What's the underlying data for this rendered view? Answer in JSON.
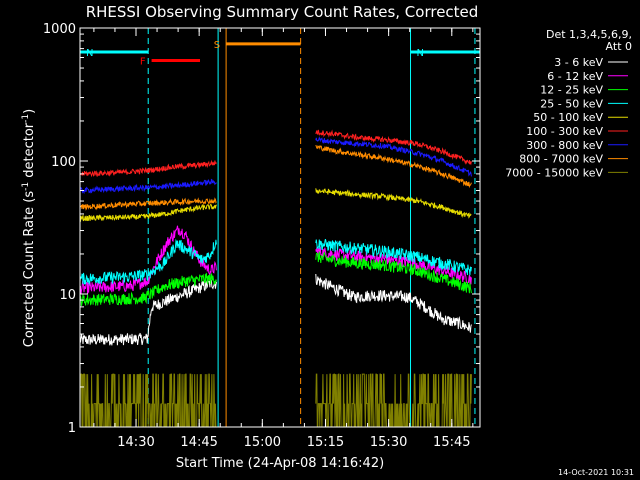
{
  "chart_data": {
    "type": "line",
    "title": "RHESSI Observing Summary Count Rates, Corrected",
    "xlabel": "Start Time (24-Apr-08 14:16:42)",
    "ylabel": "Corrected Count Rate (s^-1 detector^-1)",
    "ylabel_parts": [
      "Corrected Count Rate (s",
      "-1",
      " detector",
      "-1",
      ")"
    ],
    "yscale": "log",
    "ylim": [
      1,
      1000
    ],
    "xlim_minutes": [
      0,
      95
    ],
    "y_ticks": [
      {
        "value": 1,
        "label": "1"
      },
      {
        "value": 10,
        "label": "10"
      },
      {
        "value": 100,
        "label": "100"
      },
      {
        "value": 1000,
        "label": "1000"
      }
    ],
    "x_ticks": [
      {
        "minute": 13.3,
        "label": "14:30"
      },
      {
        "minute": 28.3,
        "label": "14:45"
      },
      {
        "minute": 43.3,
        "label": "15:00"
      },
      {
        "minute": 58.3,
        "label": "15:15"
      },
      {
        "minute": 73.3,
        "label": "15:30"
      },
      {
        "minute": 88.3,
        "label": "15:45"
      }
    ],
    "legend": {
      "header": [
        "Det 1,3,4,5,6,9,",
        "Att 0"
      ],
      "position": "right"
    },
    "series": [
      {
        "name": "3 - 6 keV",
        "color": "#ffffff",
        "points": [
          [
            0,
            4.5
          ],
          [
            16,
            4.6
          ],
          [
            17,
            8
          ],
          [
            28,
            11
          ],
          [
            31,
            12
          ],
          [
            32.5,
            12
          ]
        ],
        "points2": [
          [
            56,
            13
          ],
          [
            58,
            12
          ],
          [
            62,
            10.5
          ],
          [
            65,
            9.5
          ],
          [
            70,
            9.8
          ],
          [
            78,
            9.5
          ],
          [
            82,
            8
          ],
          [
            86,
            6.5
          ],
          [
            90,
            6
          ],
          [
            93,
            5.5
          ]
        ]
      },
      {
        "name": "6 - 12 keV",
        "color": "#ff00ff",
        "points": [
          [
            0,
            11
          ],
          [
            12,
            11.5
          ],
          [
            16,
            12.5
          ],
          [
            18,
            17
          ],
          [
            21,
            25
          ],
          [
            23.5,
            31
          ],
          [
            25,
            28
          ],
          [
            27,
            21
          ],
          [
            29,
            17
          ],
          [
            31,
            15
          ],
          [
            32.5,
            16
          ]
        ],
        "points2": [
          [
            56,
            21
          ],
          [
            60,
            20
          ],
          [
            66,
            19
          ],
          [
            72,
            18.5
          ],
          [
            80,
            17
          ],
          [
            86,
            15
          ],
          [
            93,
            13
          ]
        ]
      },
      {
        "name": "12 - 25 keV",
        "color": "#00ff00",
        "points": [
          [
            0,
            9
          ],
          [
            15,
            9.3
          ],
          [
            17,
            10
          ],
          [
            20,
            11.5
          ],
          [
            25,
            12.5
          ],
          [
            30,
            13
          ],
          [
            32.5,
            13
          ]
        ],
        "points2": [
          [
            56,
            19
          ],
          [
            60,
            18
          ],
          [
            66,
            17
          ],
          [
            72,
            16.5
          ],
          [
            80,
            15
          ],
          [
            86,
            13
          ],
          [
            93,
            11
          ]
        ]
      },
      {
        "name": "25 - 50 keV",
        "color": "#00ffff",
        "points": [
          [
            0,
            13
          ],
          [
            12,
            13.5
          ],
          [
            16,
            14
          ],
          [
            20,
            17
          ],
          [
            23,
            24
          ],
          [
            26,
            21
          ],
          [
            29,
            18
          ],
          [
            31,
            20
          ],
          [
            32.5,
            26
          ]
        ],
        "points2": [
          [
            56,
            24
          ],
          [
            60,
            23
          ],
          [
            66,
            22
          ],
          [
            72,
            21
          ],
          [
            80,
            19
          ],
          [
            86,
            17
          ],
          [
            93,
            15
          ]
        ]
      },
      {
        "name": "50 - 100 keV",
        "color": "#e6dc00",
        "points": [
          [
            0,
            37
          ],
          [
            15,
            38
          ],
          [
            20,
            40
          ],
          [
            25,
            43
          ],
          [
            30,
            45
          ],
          [
            32.5,
            45
          ]
        ],
        "points2": [
          [
            56,
            60
          ],
          [
            60,
            58
          ],
          [
            66,
            56
          ],
          [
            72,
            54
          ],
          [
            80,
            50
          ],
          [
            86,
            45
          ],
          [
            93,
            38
          ]
        ]
      },
      {
        "name": "100 - 300 keV",
        "color": "#ff2020",
        "points": [
          [
            0,
            80
          ],
          [
            10,
            82
          ],
          [
            16,
            85
          ],
          [
            22,
            90
          ],
          [
            28,
            93
          ],
          [
            32.5,
            97
          ]
        ],
        "points2": [
          [
            56,
            165
          ],
          [
            60,
            160
          ],
          [
            66,
            150
          ],
          [
            72,
            145
          ],
          [
            80,
            135
          ],
          [
            86,
            118
          ],
          [
            93,
            97
          ]
        ]
      },
      {
        "name": "300 - 800 keV",
        "color": "#1a1aff",
        "points": [
          [
            0,
            60
          ],
          [
            10,
            62
          ],
          [
            16,
            63
          ],
          [
            22,
            65
          ],
          [
            28,
            68
          ],
          [
            32.5,
            70
          ]
        ],
        "points2": [
          [
            56,
            145
          ],
          [
            60,
            140
          ],
          [
            66,
            135
          ],
          [
            72,
            130
          ],
          [
            80,
            115
          ],
          [
            86,
            100
          ],
          [
            93,
            80
          ]
        ]
      },
      {
        "name": "800 - 7000 keV",
        "color": "#ff8c00",
        "points": [
          [
            0,
            45
          ],
          [
            10,
            47
          ],
          [
            16,
            48
          ],
          [
            22,
            49
          ],
          [
            28,
            50
          ],
          [
            32.5,
            50
          ]
        ],
        "points2": [
          [
            56,
            128
          ],
          [
            60,
            120
          ],
          [
            66,
            112
          ],
          [
            72,
            105
          ],
          [
            80,
            92
          ],
          [
            86,
            80
          ],
          [
            93,
            66
          ]
        ]
      },
      {
        "name": "7000 - 15000 keV",
        "color": "#808000",
        "points": [
          [
            0,
            1.5
          ],
          [
            32.5,
            1.5
          ]
        ],
        "points2": [
          [
            56,
            1.5
          ],
          [
            68,
            1.5
          ],
          [
            72,
            2.5
          ],
          [
            80,
            3
          ],
          [
            86,
            2.5
          ],
          [
            93,
            1.5
          ]
        ]
      }
    ],
    "annotations": [
      {
        "label": "F",
        "color": "#ff0000",
        "start_minute": 17,
        "end_minute": 28.5,
        "level": 570
      },
      {
        "label": "N",
        "color": "#00ffff",
        "start_minute": 0,
        "end_minute": 16.2,
        "level": 660
      },
      {
        "label": "N",
        "color": "#00ffff",
        "start_minute": 78.5,
        "end_minute": 95,
        "level": 660
      },
      {
        "label": "S",
        "color": "#ff8c00",
        "start_minute": 34.7,
        "end_minute": 52.4,
        "level": 760
      }
    ],
    "vertical_markers": [
      {
        "minute": 16.2,
        "color": "#00ffff",
        "style": "dashed"
      },
      {
        "minute": 32.8,
        "color": "#00ffff",
        "style": "solid"
      },
      {
        "minute": 34.7,
        "color": "#ff8c00",
        "style": "solid"
      },
      {
        "minute": 52.4,
        "color": "#ff8c00",
        "style": "dashed"
      },
      {
        "minute": 78.5,
        "color": "#00ffff",
        "style": "solid"
      },
      {
        "minute": 93.8,
        "color": "#00ffff",
        "style": "dashed"
      }
    ],
    "footer_timestamp": "14-Oct-2021 10:31"
  }
}
